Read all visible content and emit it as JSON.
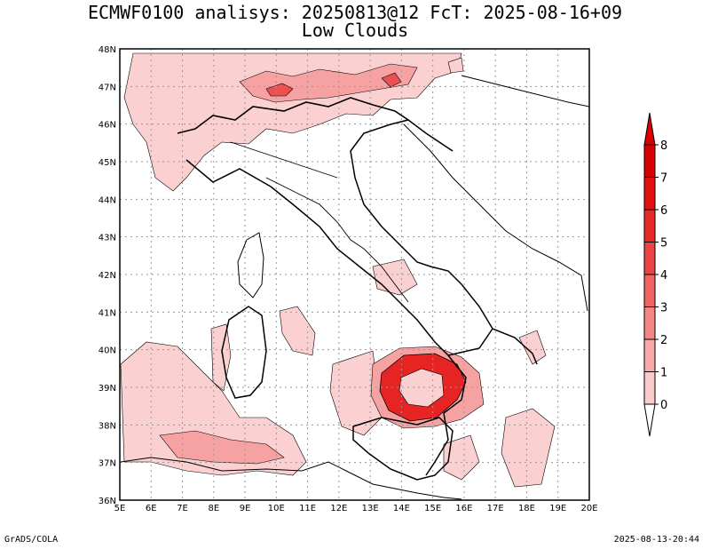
{
  "header": {
    "title_line1": "ECMWF0100 analisys: 20250813@12 FcT: 2025-08-16+09",
    "title_line2": "Low Clouds"
  },
  "map": {
    "lon_labels": [
      "5E",
      "6E",
      "7E",
      "8E",
      "9E",
      "10E",
      "11E",
      "12E",
      "13E",
      "14E",
      "15E",
      "16E",
      "17E",
      "18E",
      "19E",
      "20E"
    ],
    "lat_labels": [
      "48N",
      "47N",
      "46N",
      "45N",
      "44N",
      "43N",
      "42N",
      "41N",
      "40N",
      "39N",
      "38N",
      "37N",
      "36N"
    ]
  },
  "colorbar": {
    "levels": [
      "0",
      "1",
      "2",
      "3",
      "4",
      "5",
      "6",
      "7",
      "8"
    ],
    "colors": [
      "#fde6e6",
      "#fbcaca",
      "#f8a8a8",
      "#f48686",
      "#f06464",
      "#ec4444",
      "#e82a2a",
      "#e21010",
      "#d80000"
    ]
  },
  "footer": {
    "credit": "GrADS/COLA",
    "timestamp": "2025-08-13-20:44"
  }
}
